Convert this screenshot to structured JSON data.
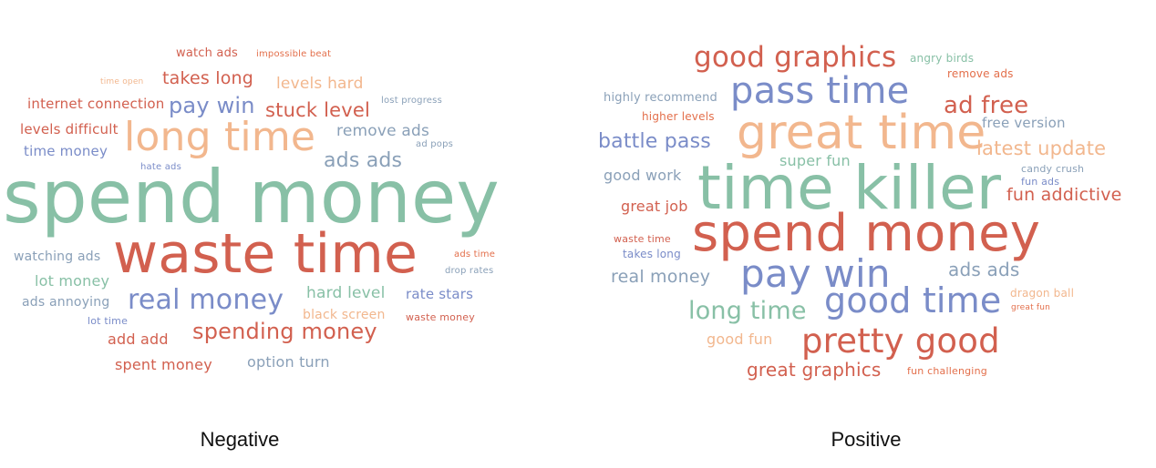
{
  "colors": {
    "red": "#d2604f",
    "green": "#88c0a6",
    "blue": "#7a8cc8",
    "orange": "#f2b78e",
    "slate": "#8aa0b8",
    "redorange": "#e36f4b"
  },
  "clouds": [
    {
      "caption": "Negative",
      "words": [
        {
          "text": "watch ads",
          "color": "red"
        },
        {
          "text": "impossible beat",
          "color": "redorange"
        },
        {
          "text": "time open",
          "color": "orange"
        },
        {
          "text": "takes long",
          "color": "red"
        },
        {
          "text": "levels hard",
          "color": "orange"
        },
        {
          "text": "internet connection",
          "color": "red"
        },
        {
          "text": "pay win",
          "color": "blue"
        },
        {
          "text": "stuck level",
          "color": "red"
        },
        {
          "text": "lost progress",
          "color": "slate"
        },
        {
          "text": "levels difficult",
          "color": "red"
        },
        {
          "text": "long time",
          "color": "orange"
        },
        {
          "text": "remove ads",
          "color": "slate"
        },
        {
          "text": "ad pops",
          "color": "slate"
        },
        {
          "text": "time money",
          "color": "blue"
        },
        {
          "text": "ads ads",
          "color": "slate"
        },
        {
          "text": "hate ads",
          "color": "blue"
        },
        {
          "text": "spend money",
          "color": "green"
        },
        {
          "text": "watching ads",
          "color": "slate"
        },
        {
          "text": "waste time",
          "color": "red"
        },
        {
          "text": "ads time",
          "color": "redorange"
        },
        {
          "text": "lot money",
          "color": "green"
        },
        {
          "text": "drop rates",
          "color": "slate"
        },
        {
          "text": "real money",
          "color": "blue"
        },
        {
          "text": "hard level",
          "color": "green"
        },
        {
          "text": "rate stars",
          "color": "blue"
        },
        {
          "text": "ads annoying",
          "color": "slate"
        },
        {
          "text": "black screen",
          "color": "orange"
        },
        {
          "text": "lot time",
          "color": "blue"
        },
        {
          "text": "waste money",
          "color": "red"
        },
        {
          "text": "spending money",
          "color": "red"
        },
        {
          "text": "add add",
          "color": "red"
        },
        {
          "text": "spent money",
          "color": "red"
        },
        {
          "text": "option turn",
          "color": "slate"
        }
      ]
    },
    {
      "caption": "Positive",
      "words": [
        {
          "text": "good graphics",
          "color": "red"
        },
        {
          "text": "angry birds",
          "color": "green"
        },
        {
          "text": "remove ads",
          "color": "redorange"
        },
        {
          "text": "pass time",
          "color": "blue"
        },
        {
          "text": "highly recommend",
          "color": "slate"
        },
        {
          "text": "ad free",
          "color": "red"
        },
        {
          "text": "higher levels",
          "color": "redorange"
        },
        {
          "text": "free version",
          "color": "slate"
        },
        {
          "text": "great time",
          "color": "orange"
        },
        {
          "text": "battle pass",
          "color": "blue"
        },
        {
          "text": "latest update",
          "color": "orange"
        },
        {
          "text": "super fun",
          "color": "green"
        },
        {
          "text": "candy crush",
          "color": "slate"
        },
        {
          "text": "good work",
          "color": "slate"
        },
        {
          "text": "time killer",
          "color": "green"
        },
        {
          "text": "fun ads",
          "color": "blue"
        },
        {
          "text": "fun addictive",
          "color": "red"
        },
        {
          "text": "great job",
          "color": "red"
        },
        {
          "text": "spend money",
          "color": "red"
        },
        {
          "text": "waste time",
          "color": "red"
        },
        {
          "text": "takes long",
          "color": "blue"
        },
        {
          "text": "pay win",
          "color": "blue"
        },
        {
          "text": "ads ads",
          "color": "slate"
        },
        {
          "text": "real money",
          "color": "slate"
        },
        {
          "text": "dragon ball",
          "color": "orange"
        },
        {
          "text": "good time",
          "color": "blue"
        },
        {
          "text": "great fun",
          "color": "redorange"
        },
        {
          "text": "long time",
          "color": "green"
        },
        {
          "text": "good fun",
          "color": "orange"
        },
        {
          "text": "pretty good",
          "color": "red"
        },
        {
          "text": "great graphics",
          "color": "red"
        },
        {
          "text": "fun challenging",
          "color": "redorange"
        }
      ]
    }
  ]
}
